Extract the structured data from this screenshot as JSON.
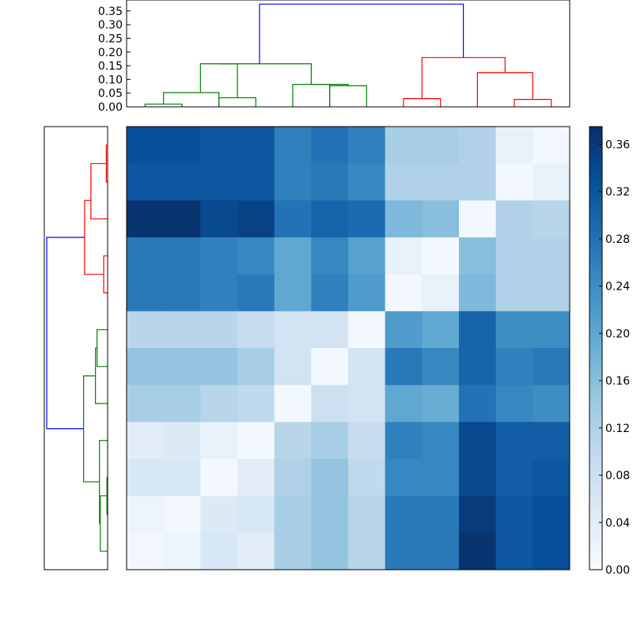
{
  "chart_data": [
    {
      "type": "dendrogram",
      "orientation": "top",
      "ylim": [
        0,
        0.39
      ],
      "yticks": [
        0.0,
        0.05,
        0.1,
        0.15,
        0.2,
        0.25,
        0.3,
        0.35
      ],
      "ytick_labels": [
        "0.00",
        "0.05",
        "0.10",
        "0.15",
        "0.20",
        "0.25",
        "0.30",
        "0.35"
      ],
      "leaf_count": 12,
      "links": [
        {
          "left": 0.5,
          "right": 1.5,
          "left_h": 0,
          "right_h": 0,
          "h": 0.01,
          "color": "#008000"
        },
        {
          "left": 1.0,
          "right": 2.5,
          "left_h": 0.01,
          "right_h": 0,
          "h": 0.052,
          "color": "#008000"
        },
        {
          "left": 2.5,
          "right": 3.5,
          "left_h": 0,
          "right_h": 0,
          "h": 0.033,
          "color": "#008000"
        },
        {
          "left": 2.0,
          "right": 3.0,
          "left_h": 0.052,
          "right_h": 0.033,
          "h": 0.157,
          "color": "#008000"
        },
        {
          "left": 4.5,
          "right": 5.5,
          "left_h": 0,
          "right_h": 0,
          "h": 0.082,
          "color": "#008000"
        },
        {
          "left": 5.5,
          "right": 6.5,
          "left_h": 0,
          "right_h": 0,
          "h": 0.077,
          "color": "#008000"
        },
        {
          "left": 5.0,
          "right": 6.0,
          "left_h": 0.082,
          "right_h": 0.077,
          "h": 0.082,
          "color": "#008000"
        },
        {
          "left": 2.5,
          "right": 5.0,
          "left_h": 0.157,
          "right_h": 0.082,
          "h": 0.157,
          "color": "#008000"
        },
        {
          "left": 7.5,
          "right": 8.5,
          "left_h": 0,
          "right_h": 0,
          "h": 0.03,
          "color": "#ff0000"
        },
        {
          "left": 10.5,
          "right": 11.5,
          "left_h": 0,
          "right_h": 0,
          "h": 0.027,
          "color": "#ff0000"
        },
        {
          "left": 9.5,
          "right": 11.0,
          "left_h": 0,
          "right_h": 0.027,
          "h": 0.125,
          "color": "#ff0000"
        },
        {
          "left": 8.0,
          "right": 10.25,
          "left_h": 0.03,
          "right_h": 0.125,
          "h": 0.18,
          "color": "#ff0000"
        },
        {
          "left": 3.6,
          "right": 9.12,
          "left_h": 0.157,
          "right_h": 0.18,
          "h": 0.375,
          "color": "#0000ff"
        }
      ]
    },
    {
      "type": "dendrogram",
      "orientation": "left",
      "leaf_count": 12,
      "xlim": [
        0,
        0.39
      ],
      "links": [
        {
          "a": 0.5,
          "b": 1.5,
          "ha": 0,
          "hb": 0,
          "h": 0.008,
          "color": "#ff0000"
        },
        {
          "a": 1.0,
          "b": 2.5,
          "ha": 0.008,
          "hb": 0,
          "h": 0.103,
          "color": "#ff0000"
        },
        {
          "a": 3.5,
          "b": 4.5,
          "ha": 0,
          "hb": 0,
          "h": 0.024,
          "color": "#ff0000"
        },
        {
          "a": 2.0,
          "b": 4.0,
          "ha": 0.103,
          "hb": 0.024,
          "h": 0.142,
          "color": "#ff0000"
        },
        {
          "a": 5.5,
          "b": 6.5,
          "ha": 0,
          "hb": 0,
          "h": 0.065,
          "color": "#008000"
        },
        {
          "a": 6.0,
          "b": 7.5,
          "ha": 0.065,
          "hb": 0,
          "h": 0.075,
          "color": "#008000"
        },
        {
          "a": 9.5,
          "b": 10.5,
          "ha": 0,
          "hb": 0,
          "h": 0.004,
          "color": "#008000"
        },
        {
          "a": 10.0,
          "b": 11.5,
          "ha": 0.004,
          "hb": 0,
          "h": 0.045,
          "color": "#008000"
        },
        {
          "a": 8.5,
          "b": 10.75,
          "ha": 0,
          "hb": 0.045,
          "h": 0.05,
          "color": "#008000"
        },
        {
          "a": 6.75,
          "b": 9.62,
          "ha": 0.075,
          "hb": 0.05,
          "h": 0.148,
          "color": "#008000"
        },
        {
          "a": 3.0,
          "b": 8.18,
          "ha": 0.142,
          "hb": 0.148,
          "h": 0.375,
          "color": "#0000ff"
        }
      ]
    },
    {
      "type": "heatmap",
      "colormap": "Blues",
      "vmin": 0.0,
      "vmax": 0.375,
      "rows": 12,
      "cols": 12,
      "values": [
        [
          0.33,
          0.33,
          0.32,
          0.32,
          0.26,
          0.28,
          0.26,
          0.13,
          0.13,
          0.12,
          0.03,
          0.01
        ],
        [
          0.32,
          0.32,
          0.32,
          0.32,
          0.26,
          0.27,
          0.25,
          0.12,
          0.12,
          0.12,
          0.01,
          0.03
        ],
        [
          0.37,
          0.37,
          0.34,
          0.35,
          0.28,
          0.3,
          0.29,
          0.17,
          0.16,
          0.01,
          0.12,
          0.11
        ],
        [
          0.27,
          0.27,
          0.26,
          0.25,
          0.2,
          0.25,
          0.21,
          0.03,
          0.01,
          0.16,
          0.12,
          0.12
        ],
        [
          0.27,
          0.27,
          0.26,
          0.27,
          0.2,
          0.26,
          0.22,
          0.01,
          0.03,
          0.17,
          0.12,
          0.12
        ],
        [
          0.11,
          0.11,
          0.11,
          0.09,
          0.07,
          0.07,
          0.01,
          0.22,
          0.2,
          0.3,
          0.24,
          0.24
        ],
        [
          0.15,
          0.15,
          0.15,
          0.13,
          0.07,
          0.01,
          0.07,
          0.27,
          0.25,
          0.3,
          0.26,
          0.27
        ],
        [
          0.13,
          0.13,
          0.11,
          0.1,
          0.01,
          0.08,
          0.07,
          0.2,
          0.19,
          0.28,
          0.25,
          0.24
        ],
        [
          0.04,
          0.05,
          0.03,
          0.01,
          0.11,
          0.13,
          0.09,
          0.26,
          0.25,
          0.34,
          0.31,
          0.31
        ],
        [
          0.06,
          0.06,
          0.01,
          0.04,
          0.12,
          0.15,
          0.1,
          0.25,
          0.25,
          0.34,
          0.31,
          0.32
        ],
        [
          0.02,
          0.01,
          0.05,
          0.06,
          0.13,
          0.15,
          0.11,
          0.27,
          0.27,
          0.36,
          0.32,
          0.33
        ],
        [
          0.01,
          0.02,
          0.06,
          0.04,
          0.13,
          0.15,
          0.11,
          0.27,
          0.27,
          0.37,
          0.32,
          0.33
        ]
      ]
    },
    {
      "type": "colorbar",
      "colormap": "Blues",
      "vmin": 0.0,
      "vmax": 0.375,
      "ticks": [
        0.0,
        0.04,
        0.08,
        0.12,
        0.16,
        0.2,
        0.24,
        0.28,
        0.32,
        0.36
      ],
      "tick_labels": [
        "0.00",
        "0.04",
        "0.08",
        "0.12",
        "0.16",
        "0.20",
        "0.24",
        "0.28",
        "0.32",
        "0.36"
      ]
    }
  ],
  "colors": {
    "blues_stops": [
      "#f7fbff",
      "#deebf7",
      "#c6dbef",
      "#9ecae1",
      "#6baed6",
      "#4292c6",
      "#2171b5",
      "#08519c",
      "#08306b"
    ],
    "axes_frame": "#000000"
  }
}
